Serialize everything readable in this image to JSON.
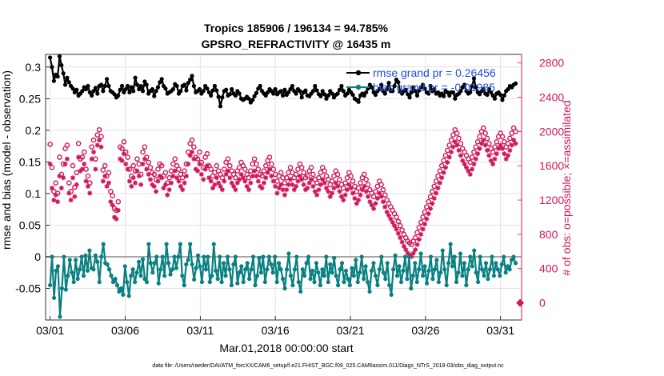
{
  "chart_data": {
    "type": "line",
    "title": [
      "Tropics 185906 / 196134 = 94.785%",
      "GPSRO_REFRACTIVITY @ 16435 m"
    ],
    "xlabel": "Mar.01,2018 00:00:00 start",
    "ylabel": "rmse and bias (model - observation)",
    "y2label": "# of obs: o=possible; ×=assimilated",
    "footnote": "data file: /Users/raeder/DAI/ATM_forcXX/CAM6_setup/f.e21.FHIST_BGC.f09_025.CAM6assim.011/Diags_NTrS_2018-03/obs_diag_output.nc",
    "xlim": [
      0.7,
      32.4
    ],
    "ylim": [
      -0.1,
      0.32
    ],
    "y2lim": [
      -200,
      2900
    ],
    "xticks": [
      1,
      6,
      11,
      16,
      21,
      26,
      31
    ],
    "xtick_labels": [
      "03/01",
      "03/06",
      "03/11",
      "03/16",
      "03/21",
      "03/26",
      "03/31"
    ],
    "yticks": [
      -0.05,
      0,
      0.05,
      0.1,
      0.15,
      0.2,
      0.25,
      0.3
    ],
    "ytick_labels": [
      "-0.05",
      "0",
      "0.05",
      "0.1",
      "0.15",
      "0.2",
      "0.25",
      "0.3"
    ],
    "y2ticks": [
      0,
      400,
      800,
      1200,
      1600,
      2000,
      2400,
      2800
    ],
    "y2tick_labels": [
      "0",
      "400",
      "800",
      "1200",
      "1600",
      "2000",
      "2400",
      "2800"
    ],
    "colors": {
      "rmse": "#000000",
      "bias": "#0a8080",
      "obs": "#d0185a",
      "legend_text": "#1f4fd8"
    },
    "series": [
      {
        "name": "rmse",
        "legend": "rmse grand pr = 0.26456",
        "axis": "left",
        "style": "line-dot",
        "values": [
          0.315,
          0.3,
          0.278,
          0.288,
          0.285,
          0.317,
          0.303,
          0.29,
          0.272,
          0.283,
          0.276,
          0.27,
          0.266,
          0.26,
          0.264,
          0.255,
          0.258,
          0.262,
          0.268,
          0.265,
          0.27,
          0.26,
          0.255,
          0.262,
          0.267,
          0.258,
          0.27,
          0.272,
          0.262,
          0.27,
          0.281,
          0.27,
          0.262,
          0.26,
          0.257,
          0.252,
          0.255,
          0.264,
          0.27,
          0.26,
          0.265,
          0.27,
          0.26,
          0.268,
          0.262,
          0.283,
          0.272,
          0.265,
          0.27,
          0.262,
          0.277,
          0.272,
          0.258,
          0.262,
          0.265,
          0.254,
          0.262,
          0.268,
          0.276,
          0.281,
          0.27,
          0.266,
          0.258,
          0.26,
          0.262,
          0.265,
          0.273,
          0.27,
          0.258,
          0.262,
          0.27,
          0.272,
          0.263,
          0.275,
          0.28,
          0.286,
          0.27,
          0.26,
          0.262,
          0.265,
          0.258,
          0.262,
          0.27,
          0.266,
          0.26,
          0.255,
          0.263,
          0.27,
          0.263,
          0.253,
          0.238,
          0.252,
          0.262,
          0.264,
          0.255,
          0.257,
          0.265,
          0.258,
          0.255,
          0.262,
          0.258,
          0.25,
          0.248,
          0.25,
          0.253,
          0.25,
          0.244,
          0.248,
          0.254,
          0.259,
          0.266,
          0.27,
          0.262,
          0.258,
          0.255,
          0.26,
          0.265,
          0.262,
          0.258,
          0.265,
          0.257,
          0.26,
          0.262,
          0.255,
          0.264,
          0.256,
          0.26,
          0.265,
          0.27,
          0.262,
          0.258,
          0.265,
          0.262,
          0.252,
          0.26,
          0.263,
          0.255,
          0.254,
          0.258,
          0.262,
          0.27,
          0.263,
          0.257,
          0.254,
          0.262,
          0.257,
          0.25,
          0.255,
          0.262,
          0.258,
          0.252,
          0.256,
          0.258,
          0.264,
          0.27,
          0.262,
          0.255,
          0.258,
          0.264,
          0.26,
          0.256,
          0.25,
          0.248,
          0.245,
          0.255,
          0.258,
          0.255,
          0.26,
          0.266,
          0.272,
          0.268,
          0.26,
          0.256,
          0.262,
          0.265,
          0.272,
          0.262,
          0.258,
          0.265,
          0.275,
          0.262,
          0.262,
          0.27,
          0.28,
          0.276,
          0.262,
          0.258,
          0.262,
          0.264,
          0.257,
          0.252,
          0.26,
          0.268,
          0.262,
          0.255,
          0.263,
          0.268,
          0.272,
          0.266,
          0.26,
          0.258,
          0.27,
          0.262,
          0.265,
          0.258,
          0.26,
          0.255,
          0.258,
          0.254,
          0.262,
          0.26,
          0.255,
          0.26,
          0.26,
          0.25,
          0.256,
          0.258,
          0.262,
          0.268,
          0.272,
          0.262,
          0.258,
          0.26,
          0.27,
          0.282,
          0.268,
          0.26,
          0.257,
          0.262,
          0.265,
          0.258,
          0.256,
          0.265,
          0.26,
          0.255,
          0.25,
          0.258,
          0.26,
          0.256,
          0.248,
          0.255,
          0.262,
          0.265,
          0.27,
          0.268,
          0.272,
          0.274
        ]
      },
      {
        "name": "bias",
        "legend": "bias grand pr = -0.01985",
        "axis": "left",
        "style": "line-dot",
        "values": [
          -0.045,
          0.0,
          -0.065,
          -0.022,
          -0.015,
          -0.095,
          -0.05,
          0.0,
          -0.052,
          -0.03,
          -0.005,
          -0.025,
          -0.04,
          -0.005,
          -0.035,
          -0.02,
          0.0,
          -0.03,
          0.002,
          -0.022,
          0.01,
          -0.018,
          -0.02,
          0.002,
          -0.008,
          -0.04,
          0.0,
          0.02,
          -0.01,
          -0.012,
          -0.02,
          -0.03,
          -0.04,
          -0.035,
          -0.045,
          -0.055,
          -0.05,
          -0.06,
          -0.015,
          -0.04,
          -0.062,
          -0.03,
          -0.02,
          -0.04,
          -0.025,
          -0.008,
          -0.03,
          -0.004,
          -0.035,
          -0.04,
          0.02,
          -0.01,
          -0.025,
          -0.01,
          0.0,
          -0.042,
          -0.02,
          0.0,
          -0.03,
          0.02,
          -0.01,
          -0.028,
          -0.02,
          0.0,
          -0.018,
          0.0,
          0.02,
          -0.03,
          -0.045,
          -0.012,
          -0.005,
          0.02,
          -0.012,
          -0.036,
          -0.018,
          0.002,
          -0.015,
          -0.04,
          0.0,
          -0.02,
          0.0,
          -0.04,
          -0.03,
          0.02,
          -0.022,
          -0.035,
          0.0,
          -0.04,
          -0.01,
          -0.03,
          0.0,
          -0.02,
          -0.045,
          -0.012,
          0.0,
          -0.042,
          -0.025,
          -0.015,
          -0.04,
          -0.02,
          -0.01,
          -0.035,
          -0.02,
          0.0,
          -0.045,
          -0.03,
          -0.002,
          -0.025,
          0.0,
          -0.04,
          -0.02,
          0.0,
          -0.012,
          -0.025,
          0.0,
          -0.04,
          -0.01,
          -0.02,
          -0.035,
          -0.05,
          -0.02,
          0.005,
          -0.03,
          -0.045,
          -0.02,
          0.0,
          -0.04,
          -0.055,
          -0.02,
          -0.03,
          -0.01,
          0.0,
          -0.035,
          -0.022,
          -0.04,
          -0.01,
          -0.025,
          -0.045,
          -0.02,
          -0.03,
          0.0,
          -0.04,
          -0.012,
          -0.025,
          -0.002,
          -0.03,
          -0.045,
          -0.02,
          -0.01,
          -0.04,
          -0.022,
          -0.035,
          -0.045,
          -0.018,
          -0.03,
          -0.005,
          -0.04,
          -0.025,
          0.0,
          -0.035,
          -0.015,
          -0.04,
          -0.055,
          -0.022,
          -0.01,
          -0.03,
          -0.045,
          -0.02,
          0.0,
          -0.025,
          -0.035,
          -0.01,
          -0.045,
          -0.06,
          -0.02,
          0.002,
          -0.03,
          -0.015,
          -0.04,
          -0.022,
          0.0,
          -0.035,
          0.0,
          -0.05,
          -0.03,
          -0.01,
          -0.04,
          -0.02,
          0.005,
          -0.03,
          -0.015,
          -0.042,
          -0.022,
          0.0,
          -0.035,
          -0.02,
          -0.005,
          -0.04,
          -0.025,
          0.01,
          -0.02,
          -0.045,
          -0.01,
          0.02,
          -0.015,
          0.0,
          -0.04,
          -0.025,
          0.005,
          -0.03,
          -0.01,
          -0.045,
          -0.02,
          0.0,
          -0.015,
          0.01,
          -0.025,
          -0.04,
          0.0,
          -0.02,
          -0.03,
          -0.01,
          -0.035,
          -0.02,
          0.0,
          -0.03,
          -0.01,
          -0.02,
          -0.03,
          -0.012,
          0.0,
          -0.025,
          -0.015,
          -0.02,
          -0.005,
          0.0,
          -0.01
        ]
      },
      {
        "name": "obs_possible",
        "axis": "right",
        "style": "marker-o",
        "values": [
          1850,
          1580,
          1300,
          1400,
          1280,
          1700,
          1500,
          1620,
          1800,
          1840,
          1400,
          1300,
          1600,
          1350,
          1520,
          1860,
          1680,
          1700,
          1760,
          1560,
          1480,
          1400,
          1820,
          1900,
          1680,
          1960,
          2020,
          1940,
          1550,
          1600,
          1480,
          1520,
          1300,
          1250,
          1100,
          1080,
          1180,
          1820,
          1800,
          1880,
          1760,
          1700,
          1560,
          1480,
          1600,
          1540,
          1680,
          1620,
          1500,
          1760,
          1820,
          1700,
          1640,
          1580,
          1520,
          1500,
          1440,
          1560,
          1620,
          1600,
          1480,
          1520,
          1400,
          1460,
          1540,
          1620,
          1680,
          1600,
          1560,
          1500,
          1460,
          1540,
          1620,
          1760,
          1860,
          1900,
          1820,
          1700,
          1680,
          1760,
          1640,
          1580,
          1700,
          1740,
          1600,
          1560,
          1480,
          1520,
          1600,
          1540,
          1500,
          1460,
          1560,
          1640,
          1680,
          1600,
          1540,
          1500,
          1460,
          1540,
          1580,
          1640,
          1600,
          1560,
          1500,
          1460,
          1540,
          1620,
          1680,
          1620,
          1560,
          1500,
          1480,
          1540,
          1600,
          1660,
          1700,
          1620,
          1560,
          1500,
          1420,
          1480,
          1520,
          1460,
          1400,
          1460,
          1520,
          1580,
          1520,
          1460,
          1500,
          1560,
          1620,
          1580,
          1520,
          1460,
          1480,
          1540,
          1580,
          1500,
          1440,
          1400,
          1460,
          1520,
          1580,
          1540,
          1480,
          1440,
          1380,
          1420,
          1480,
          1540,
          1500,
          1440,
          1380,
          1340,
          1400,
          1460,
          1520,
          1480,
          1420,
          1360,
          1300,
          1340,
          1400,
          1460,
          1500,
          1440,
          1380,
          1320,
          1280,
          1240,
          1300,
          1360,
          1420,
          1380,
          1320,
          1260,
          1200,
          1160,
          1120,
          1080,
          1040,
          1000,
          950,
          900,
          850,
          800,
          760,
          720,
          700,
          680,
          720,
          760,
          820,
          880,
          940,
          1000,
          1060,
          1120,
          1180,
          1240,
          1300,
          1360,
          1420,
          1480,
          1540,
          1600,
          1660,
          1720,
          1780,
          1840,
          1900,
          1960,
          2020,
          1980,
          1920,
          1860,
          1800,
          1760,
          1720,
          1680,
          1640,
          1700,
          1760,
          1820,
          1880,
          1940,
          2000,
          2040,
          1980,
          1920,
          1860,
          1800,
          1760,
          1820,
          1880,
          1940,
          1980,
          1940,
          1880,
          1820,
          1860,
          1920,
          1980,
          2040,
          2000
        ]
      },
      {
        "name": "obs_assimilated",
        "axis": "right",
        "style": "marker-star",
        "values": [
          1620,
          1340,
          1200,
          1260,
          1180,
          1480,
          1340,
          1460,
          1620,
          1680,
          1280,
          1200,
          1460,
          1240,
          1380,
          1700,
          1540,
          1560,
          1620,
          1420,
          1360,
          1280,
          1680,
          1760,
          1560,
          1840,
          1900,
          1820,
          1420,
          1480,
          1360,
          1400,
          1180,
          1140,
          1000,
          980,
          1080,
          1680,
          1660,
          1740,
          1620,
          1560,
          1420,
          1360,
          1460,
          1400,
          1540,
          1480,
          1380,
          1620,
          1680,
          1560,
          1500,
          1440,
          1380,
          1360,
          1300,
          1420,
          1480,
          1460,
          1340,
          1380,
          1260,
          1320,
          1400,
          1480,
          1540,
          1460,
          1420,
          1360,
          1320,
          1400,
          1480,
          1620,
          1720,
          1760,
          1680,
          1560,
          1540,
          1620,
          1500,
          1440,
          1560,
          1600,
          1460,
          1420,
          1340,
          1380,
          1460,
          1400,
          1360,
          1320,
          1420,
          1500,
          1540,
          1460,
          1400,
          1360,
          1320,
          1400,
          1440,
          1500,
          1460,
          1420,
          1360,
          1320,
          1400,
          1480,
          1540,
          1480,
          1420,
          1360,
          1340,
          1400,
          1460,
          1520,
          1560,
          1480,
          1420,
          1360,
          1280,
          1340,
          1380,
          1320,
          1260,
          1320,
          1380,
          1440,
          1380,
          1320,
          1360,
          1420,
          1480,
          1440,
          1380,
          1320,
          1340,
          1400,
          1440,
          1360,
          1300,
          1260,
          1320,
          1380,
          1440,
          1400,
          1340,
          1300,
          1240,
          1280,
          1340,
          1400,
          1360,
          1300,
          1240,
          1200,
          1260,
          1320,
          1380,
          1340,
          1280,
          1220,
          1160,
          1200,
          1260,
          1320,
          1360,
          1300,
          1240,
          1180,
          1140,
          1100,
          1160,
          1220,
          1280,
          1240,
          1180,
          1120,
          1060,
          1020,
          980,
          940,
          900,
          860,
          810,
          760,
          710,
          660,
          620,
          580,
          560,
          540,
          580,
          620,
          680,
          740,
          800,
          860,
          920,
          980,
          1040,
          1100,
          1160,
          1220,
          1280,
          1340,
          1400,
          1460,
          1520,
          1580,
          1640,
          1700,
          1760,
          1820,
          1880,
          1840,
          1780,
          1720,
          1660,
          1620,
          1580,
          1540,
          1500,
          1560,
          1620,
          1680,
          1740,
          1800,
          1860,
          1900,
          1840,
          1780,
          1720,
          1660,
          1620,
          1680,
          1740,
          1800,
          1840,
          1800,
          1740,
          1680,
          1720,
          1780,
          1840,
          1900,
          1860
        ]
      }
    ],
    "extra_right_point": {
      "x": 32.3,
      "y2": 0,
      "marker": "diamond"
    }
  }
}
